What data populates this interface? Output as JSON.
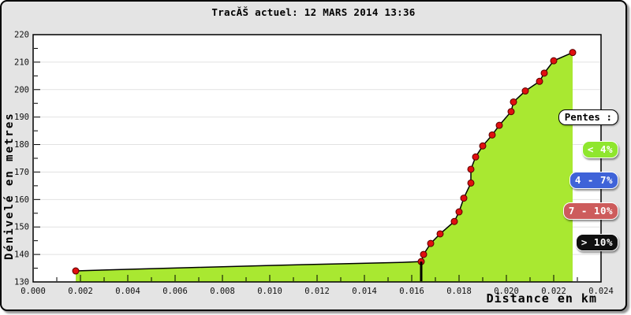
{
  "chart_data": {
    "type": "area",
    "title": "TracĂŠ actuel: 12 MARS 2014 13:36",
    "xlabel": "Distance en km",
    "ylabel": "Dénivelé en metres",
    "xlim": [
      0.0,
      0.024
    ],
    "ylim": [
      130,
      220
    ],
    "x_major_step": 0.002,
    "x_minor_step": 0.001,
    "y_major_step": 10,
    "y_minor_step": 5,
    "grid": "horizontal-only",
    "legend_position": "right",
    "fill_color": "#a9e831",
    "line_color": "#000000",
    "marker_color": "#e01010",
    "cursor": {
      "x": 0.0164,
      "y": 137.4
    },
    "points": [
      {
        "x": 0.0018,
        "y": 134.0,
        "marker": true
      },
      {
        "x": 0.004,
        "y": 134.6,
        "marker": false
      },
      {
        "x": 0.007,
        "y": 135.3,
        "marker": false
      },
      {
        "x": 0.01,
        "y": 136.0,
        "marker": false
      },
      {
        "x": 0.013,
        "y": 136.6,
        "marker": false
      },
      {
        "x": 0.0155,
        "y": 137.1,
        "marker": false
      },
      {
        "x": 0.0164,
        "y": 137.4,
        "marker": true
      },
      {
        "x": 0.0165,
        "y": 140.0,
        "marker": true
      },
      {
        "x": 0.0168,
        "y": 144.0,
        "marker": true
      },
      {
        "x": 0.0172,
        "y": 147.5,
        "marker": true
      },
      {
        "x": 0.0178,
        "y": 152.0,
        "marker": true
      },
      {
        "x": 0.018,
        "y": 155.5,
        "marker": true
      },
      {
        "x": 0.0182,
        "y": 160.5,
        "marker": true
      },
      {
        "x": 0.0185,
        "y": 166.0,
        "marker": true
      },
      {
        "x": 0.0185,
        "y": 171.0,
        "marker": true
      },
      {
        "x": 0.0187,
        "y": 175.5,
        "marker": true
      },
      {
        "x": 0.019,
        "y": 179.5,
        "marker": true
      },
      {
        "x": 0.0194,
        "y": 183.5,
        "marker": true
      },
      {
        "x": 0.0197,
        "y": 187.0,
        "marker": true
      },
      {
        "x": 0.0202,
        "y": 192.0,
        "marker": true
      },
      {
        "x": 0.0203,
        "y": 195.5,
        "marker": true
      },
      {
        "x": 0.0208,
        "y": 199.5,
        "marker": true
      },
      {
        "x": 0.0214,
        "y": 203.0,
        "marker": true
      },
      {
        "x": 0.0216,
        "y": 206.0,
        "marker": true
      },
      {
        "x": 0.022,
        "y": 210.5,
        "marker": true
      },
      {
        "x": 0.0228,
        "y": 213.5,
        "marker": true
      }
    ]
  },
  "axes": {
    "x_label": "Distance en km",
    "y_label": "Dénivelé en metres",
    "x_tick_labels": [
      "0.000",
      "0.002",
      "0.004",
      "0.006",
      "0.008",
      "0.010",
      "0.012",
      "0.014",
      "0.016",
      "0.018",
      "0.020",
      "0.022",
      "0.024"
    ],
    "y_tick_labels": [
      "130",
      "140",
      "150",
      "160",
      "170",
      "180",
      "190",
      "200",
      "210",
      "220"
    ]
  },
  "legend": {
    "title": "Pentes :",
    "items": [
      {
        "label": "< 4%",
        "bg": "#8fe62e",
        "fg": "#ffffff"
      },
      {
        "label": "4 - 7%",
        "bg": "#3f63d8",
        "fg": "#ffffff"
      },
      {
        "label": "7 - 10%",
        "bg": "#cd5c5c",
        "fg": "#ffffff"
      },
      {
        "label": "> 10%",
        "bg": "#101010",
        "fg": "#ffffff"
      }
    ]
  },
  "colors": {
    "panel_background": "#e4e4e4",
    "plot_background": "#ffffff",
    "gridline": "#e2e2e2",
    "axis": "#000000"
  }
}
